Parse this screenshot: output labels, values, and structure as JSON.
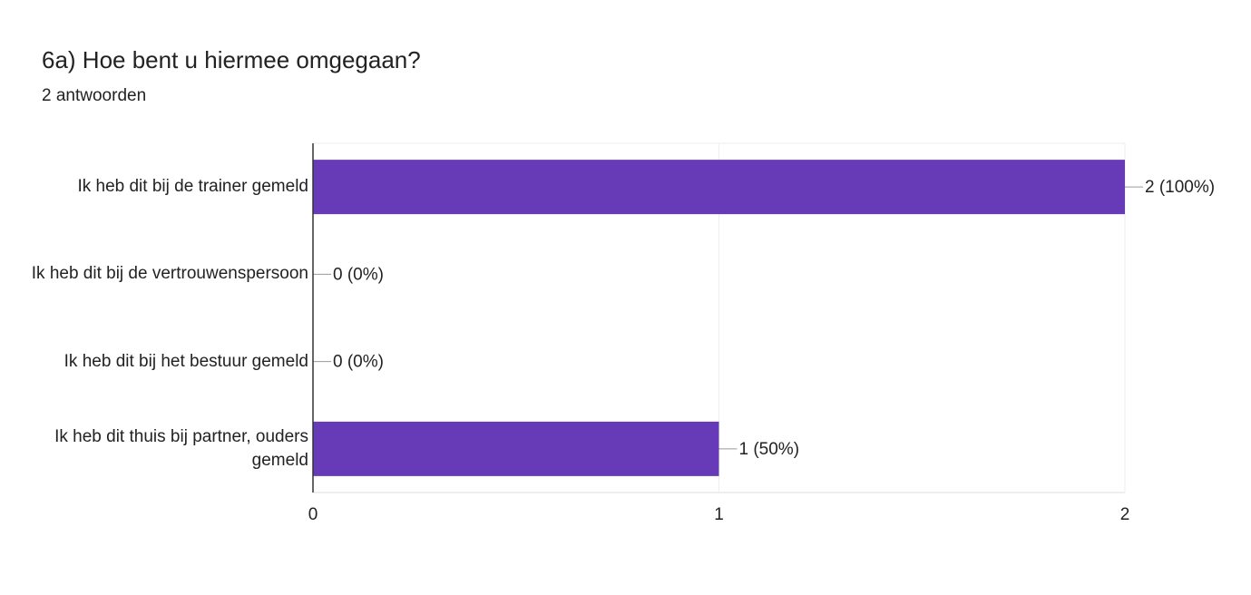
{
  "chart_data": {
    "type": "hbar",
    "title": "6a) Hoe bent u hiermee omgegaan?",
    "subtitle": "2 antwoorden",
    "categories": [
      "Ik heb dit bij de trainer gemeld",
      "Ik heb dit bij de vertrouwenspersoon",
      "Ik heb dit bij het bestuur gemeld",
      "Ik heb dit thuis bij partner, ouders gemeld"
    ],
    "values": [
      2,
      0,
      0,
      1
    ],
    "value_labels": [
      "2 (100%)",
      "0 (0%)",
      "0 (0%)",
      "1 (50%)"
    ],
    "color": "#673ab7",
    "xlim": [
      0,
      2
    ],
    "xticks": [
      0,
      1,
      2
    ],
    "grid": true
  }
}
